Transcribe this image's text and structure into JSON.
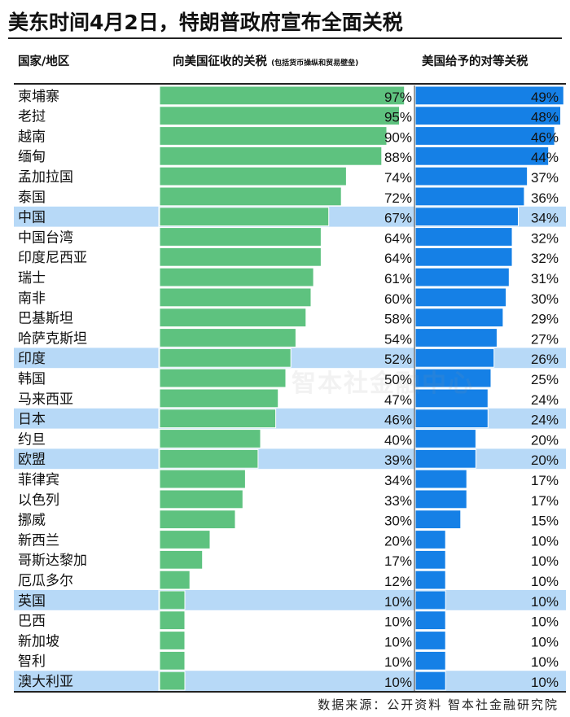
{
  "title": "美东时间4月2日，特朗普政府宣布全面关税",
  "headers": {
    "country": "国家/地区",
    "imposed": "向美国征收的关税",
    "imposed_note": "(包括货币操纵和贸易壁垒)",
    "reciprocal": "美国给予的对等关税"
  },
  "source": "数据来源：公开资料 智本社金融研究院",
  "watermark": "智本社金融中心",
  "colors": {
    "imposed_bar": "#5ec27f",
    "reciprocal_bar": "#1580e6",
    "highlight_row": "#b7d9f7",
    "row_border": "#ffffff"
  },
  "chart_data": {
    "type": "bar",
    "orientation": "horizontal",
    "title": "美东时间4月2日，特朗普政府宣布全面关税",
    "categories": [
      "柬埔寨",
      "老挝",
      "越南",
      "缅甸",
      "孟加拉国",
      "泰国",
      "中国",
      "中国台湾",
      "印度尼西亚",
      "瑞士",
      "南非",
      "巴基斯坦",
      "哈萨克斯坦",
      "印度",
      "韩国",
      "马来西亚",
      "日本",
      "约旦",
      "欧盟",
      "菲律宾",
      "以色列",
      "挪威",
      "新西兰",
      "哥斯达黎加",
      "厄瓜多尔",
      "英国",
      "巴西",
      "新加坡",
      "智利",
      "澳大利亚"
    ],
    "highlighted": [
      "中国",
      "印度",
      "日本",
      "欧盟",
      "英国",
      "澳大利亚"
    ],
    "series": [
      {
        "name": "向美国征收的关税",
        "values": [
          97,
          95,
          90,
          88,
          74,
          72,
          67,
          64,
          64,
          61,
          60,
          58,
          54,
          52,
          50,
          47,
          46,
          40,
          39,
          34,
          33,
          30,
          20,
          17,
          12,
          10,
          10,
          10,
          10,
          10
        ],
        "max": 100
      },
      {
        "name": "美国给予的对等关税",
        "values": [
          49,
          48,
          46,
          44,
          37,
          36,
          34,
          32,
          32,
          31,
          30,
          29,
          27,
          26,
          25,
          24,
          24,
          20,
          20,
          17,
          17,
          15,
          10,
          10,
          10,
          10,
          10,
          10,
          10,
          10
        ],
        "max": 50
      }
    ],
    "unit": "%"
  }
}
